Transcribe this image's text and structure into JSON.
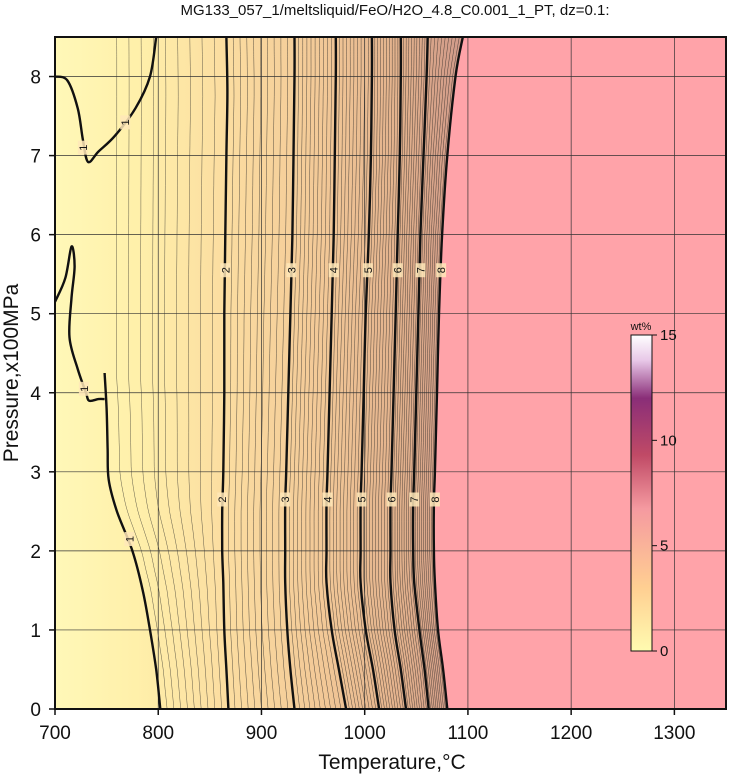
{
  "chart_data": {
    "type": "contour",
    "title": "MG133_057_1/meltsliquid/FeO/H2O_4.8_C0.001_1_PT, dz=0.1:",
    "xlabel": "Temperature,°C",
    "ylabel": "Pressure,x100MPa",
    "xlim": [
      700,
      1350
    ],
    "ylim": [
      0,
      8.5
    ],
    "x_ticks": [
      700,
      800,
      900,
      1000,
      1100,
      1200,
      1300
    ],
    "y_ticks": [
      0,
      1,
      2,
      3,
      4,
      5,
      6,
      7,
      8
    ],
    "grid": true,
    "contour_interval": 0.1,
    "labeled_contours": [
      {
        "level": 1,
        "label": "1",
        "path": [
          [
            748,
            4.25
          ],
          [
            750,
            3.8
          ],
          [
            751,
            3.3
          ],
          [
            752,
            2.9
          ],
          [
            760,
            2.5
          ],
          [
            775,
            2.0
          ],
          [
            785,
            1.5
          ],
          [
            792,
            1.0
          ],
          [
            798,
            0.5
          ],
          [
            802,
            0.0
          ]
        ],
        "label_positions": [
          [
            772,
            2.15
          ]
        ]
      },
      {
        "level": 1,
        "label": "1",
        "path": [
          [
            700,
            8.0
          ],
          [
            712,
            7.95
          ],
          [
            722,
            7.6
          ],
          [
            727,
            7.2
          ],
          [
            732,
            6.92
          ],
          [
            742,
            7.05
          ],
          [
            758,
            7.25
          ],
          [
            778,
            7.6
          ],
          [
            792,
            8.0
          ],
          [
            798,
            8.5
          ]
        ],
        "label_positions": [
          [
            727,
            7.1
          ],
          [
            768,
            7.42
          ]
        ]
      },
      {
        "level": 1,
        "label": "1",
        "path": [
          [
            700,
            5.15
          ],
          [
            710,
            5.45
          ],
          [
            716,
            5.85
          ],
          [
            719,
            5.6
          ],
          [
            716,
            5.2
          ],
          [
            714,
            4.7
          ],
          [
            722,
            4.3
          ],
          [
            730,
            4.0
          ],
          [
            733,
            3.9
          ],
          [
            742,
            3.92
          ],
          [
            748,
            3.92
          ]
        ],
        "label_positions": [
          [
            728,
            4.05
          ]
        ]
      },
      {
        "level": 2,
        "label": "2",
        "path": [
          [
            868,
            0.0
          ],
          [
            866,
            0.5
          ],
          [
            864,
            1.0
          ],
          [
            863,
            1.6
          ],
          [
            862,
            2.0
          ],
          [
            862,
            2.5
          ],
          [
            863,
            3.0
          ],
          [
            864,
            4.0
          ],
          [
            864,
            5.0
          ],
          [
            865,
            6.0
          ],
          [
            866,
            7.0
          ],
          [
            867,
            7.8
          ],
          [
            866,
            8.5
          ]
        ],
        "label_positions": [
          [
            862,
            2.65
          ],
          [
            865,
            5.55
          ]
        ]
      },
      {
        "level": 3,
        "label": "3",
        "path": [
          [
            932,
            0.0
          ],
          [
            928,
            0.5
          ],
          [
            925,
            1.0
          ],
          [
            923,
            1.6
          ],
          [
            923,
            2.0
          ],
          [
            923,
            2.6
          ],
          [
            924,
            3.0
          ],
          [
            926,
            4.0
          ],
          [
            928,
            5.0
          ],
          [
            930,
            6.0
          ],
          [
            931,
            7.0
          ],
          [
            932,
            8.0
          ],
          [
            932,
            8.5
          ]
        ],
        "label_positions": [
          [
            923,
            2.65
          ],
          [
            929,
            5.55
          ]
        ]
      },
      {
        "level": 4,
        "label": "4",
        "path": [
          [
            982,
            0.0
          ],
          [
            975,
            0.5
          ],
          [
            968,
            1.0
          ],
          [
            963,
            1.6
          ],
          [
            963,
            2.0
          ],
          [
            963,
            2.6
          ],
          [
            964,
            3.0
          ],
          [
            966,
            4.0
          ],
          [
            968,
            5.0
          ],
          [
            970,
            6.0
          ],
          [
            971,
            7.0
          ],
          [
            972,
            8.0
          ],
          [
            972,
            8.5
          ]
        ],
        "label_positions": [
          [
            964,
            2.65
          ],
          [
            970,
            5.55
          ]
        ]
      },
      {
        "level": 5,
        "label": "5",
        "path": [
          [
            1014,
            0.0
          ],
          [
            1008,
            0.5
          ],
          [
            1001,
            1.0
          ],
          [
            996,
            1.6
          ],
          [
            996,
            2.0
          ],
          [
            996,
            2.6
          ],
          [
            997,
            3.0
          ],
          [
            999,
            4.0
          ],
          [
            1001,
            5.0
          ],
          [
            1004,
            6.0
          ],
          [
            1006,
            7.0
          ],
          [
            1007,
            8.0
          ],
          [
            1007,
            8.5
          ]
        ],
        "label_positions": [
          [
            997,
            2.65
          ],
          [
            1003,
            5.55
          ]
        ]
      },
      {
        "level": 6,
        "label": "6",
        "path": [
          [
            1040,
            0.0
          ],
          [
            1035,
            0.5
          ],
          [
            1029,
            1.0
          ],
          [
            1025,
            1.6
          ],
          [
            1025,
            2.0
          ],
          [
            1025,
            2.6
          ],
          [
            1026,
            3.0
          ],
          [
            1028,
            4.0
          ],
          [
            1030,
            5.0
          ],
          [
            1032,
            6.0
          ],
          [
            1034,
            7.0
          ],
          [
            1035,
            8.0
          ],
          [
            1035,
            8.5
          ]
        ],
        "label_positions": [
          [
            1026,
            2.65
          ],
          [
            1032,
            5.55
          ]
        ]
      },
      {
        "level": 7,
        "label": "7",
        "path": [
          [
            1062,
            0.0
          ],
          [
            1058,
            0.5
          ],
          [
            1053,
            1.0
          ],
          [
            1048,
            1.6
          ],
          [
            1047,
            2.0
          ],
          [
            1047,
            2.6
          ],
          [
            1048,
            3.0
          ],
          [
            1050,
            4.0
          ],
          [
            1052,
            5.0
          ],
          [
            1054,
            6.0
          ],
          [
            1057,
            7.0
          ],
          [
            1060,
            8.0
          ],
          [
            1061,
            8.5
          ]
        ],
        "label_positions": [
          [
            1048,
            2.65
          ],
          [
            1054,
            5.55
          ]
        ]
      },
      {
        "level": 8,
        "label": "8",
        "path": [
          [
            1080,
            0.0
          ],
          [
            1076,
            0.5
          ],
          [
            1071,
            1.0
          ],
          [
            1068,
            1.6
          ],
          [
            1067,
            2.0
          ],
          [
            1067,
            2.6
          ],
          [
            1068,
            3.0
          ],
          [
            1070,
            4.0
          ],
          [
            1072,
            5.0
          ],
          [
            1075,
            6.0
          ],
          [
            1080,
            7.0
          ],
          [
            1088,
            8.0
          ],
          [
            1095,
            8.5
          ]
        ],
        "label_positions": [
          [
            1068,
            2.65
          ],
          [
            1074,
            5.55
          ]
        ]
      }
    ],
    "plateau_region": {
      "boundary_temperature_approx": 1095,
      "color": "#ffa3a9"
    },
    "colorbar": {
      "label": "wt%",
      "range": [
        0,
        15
      ],
      "ticks": [
        0,
        5,
        10,
        15
      ],
      "colors": [
        "#fffab0",
        "#ffcf90",
        "#f59aa0",
        "#c23a5a",
        "#7a2a70",
        "#ffffff"
      ]
    },
    "colors": {
      "low": "#fff6b2",
      "mid": "#f2c895",
      "high": "#ffa3a9",
      "contour_line": "#111111"
    }
  }
}
